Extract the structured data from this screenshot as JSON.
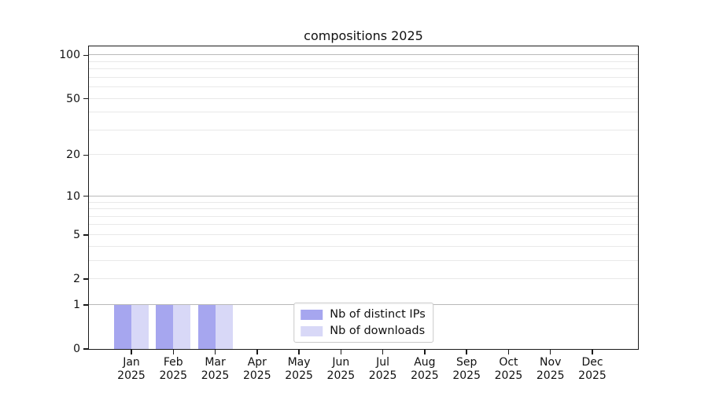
{
  "chart_data": {
    "type": "bar",
    "title": "compositions 2025",
    "x_categories": [
      {
        "month": "Jan",
        "year": "2025"
      },
      {
        "month": "Feb",
        "year": "2025"
      },
      {
        "month": "Mar",
        "year": "2025"
      },
      {
        "month": "Apr",
        "year": "2025"
      },
      {
        "month": "May",
        "year": "2025"
      },
      {
        "month": "Jun",
        "year": "2025"
      },
      {
        "month": "Jul",
        "year": "2025"
      },
      {
        "month": "Aug",
        "year": "2025"
      },
      {
        "month": "Sep",
        "year": "2025"
      },
      {
        "month": "Oct",
        "year": "2025"
      },
      {
        "month": "Nov",
        "year": "2025"
      },
      {
        "month": "Dec",
        "year": "2025"
      }
    ],
    "series": [
      {
        "name": "Nb of distinct IPs",
        "color": "#a6a6ef",
        "values": [
          1,
          1,
          1,
          0,
          0,
          0,
          0,
          0,
          0,
          0,
          0,
          0
        ]
      },
      {
        "name": "Nb of downloads",
        "color": "#d8d8f7",
        "values": [
          1,
          1,
          1,
          0,
          0,
          0,
          0,
          0,
          0,
          0,
          0,
          0
        ]
      }
    ],
    "yscale": "log1p",
    "ylim": [
      0,
      115
    ],
    "ytick_labels": [
      0,
      1,
      2,
      5,
      10,
      20,
      50,
      100
    ],
    "y_decade_gridlines": [
      1,
      10,
      100
    ],
    "y_minor_gridlines": [
      2,
      3,
      4,
      5,
      6,
      7,
      8,
      9,
      20,
      30,
      40,
      50,
      60,
      70,
      80,
      90
    ],
    "grid": true,
    "legend_position": "lower center"
  }
}
